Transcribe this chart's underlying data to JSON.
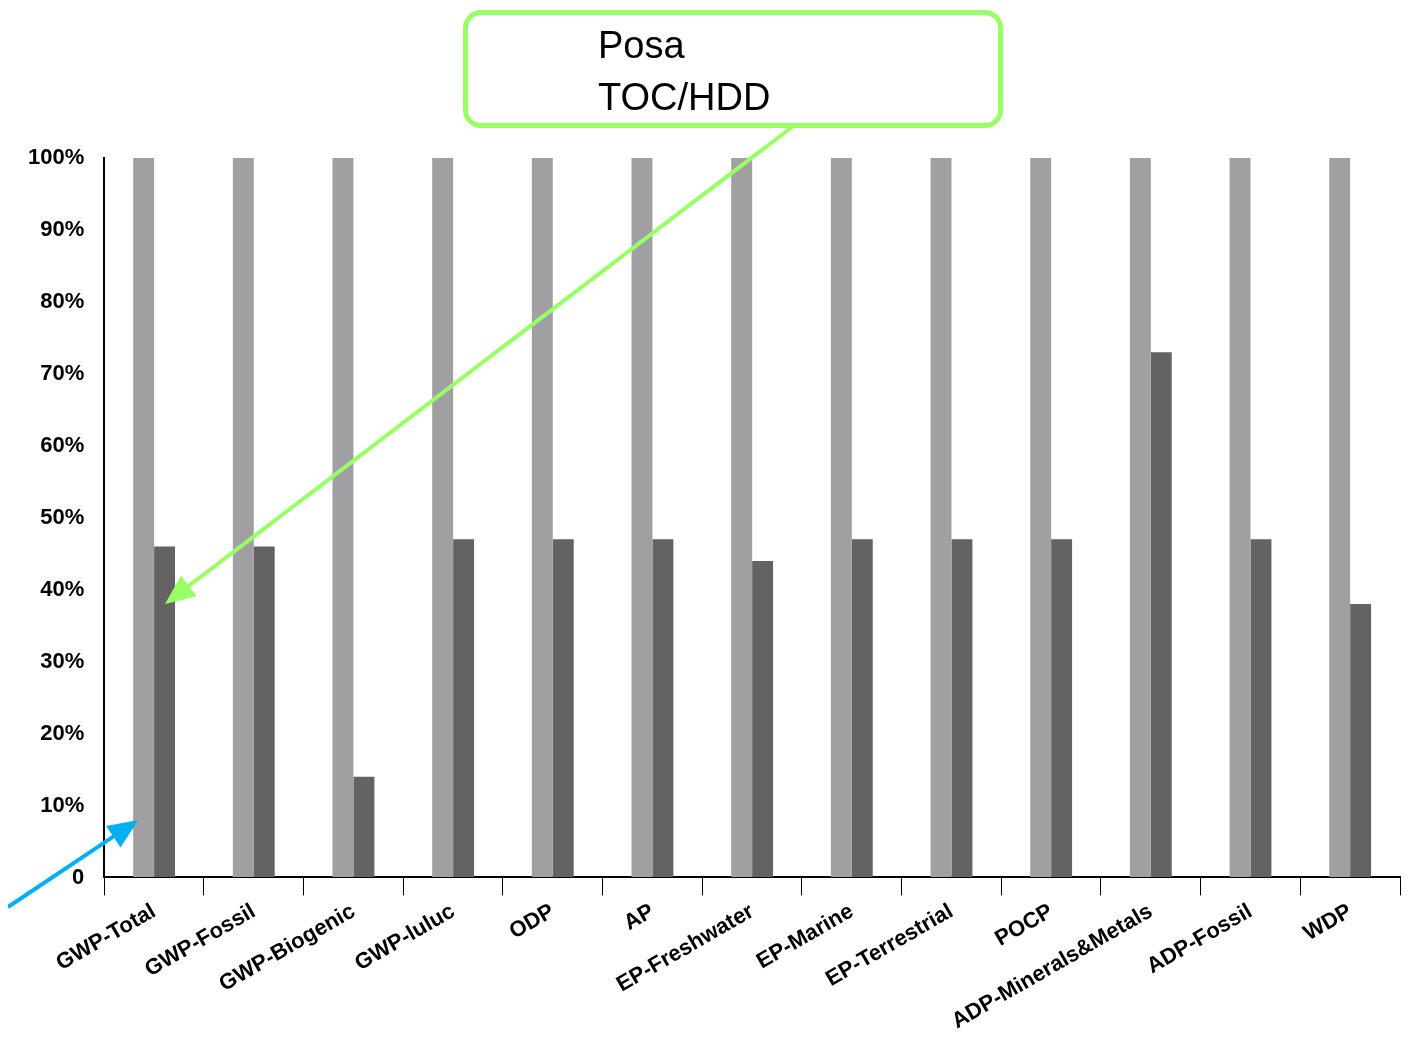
{
  "chart_data": {
    "type": "bar",
    "categories": [
      "GWP-Total",
      "GWP-Fossil",
      "GWP-Biogenic",
      "GWP-luluc",
      "ODP",
      "AP",
      "EP-Freshwater",
      "EP-Marine",
      "EP-Terrestrial",
      "POCP",
      "ADP-Minerals&Metals",
      "ADP-Fossil",
      "WDP"
    ],
    "series": [
      {
        "color": "#a0a0a2",
        "values": [
          100,
          100,
          100,
          100,
          100,
          100,
          100,
          100,
          100,
          100,
          100,
          100,
          100
        ]
      },
      {
        "color": "#636365",
        "values": [
          46,
          46,
          14,
          47,
          47,
          47,
          44,
          47,
          47,
          47,
          73,
          47,
          38
        ]
      }
    ],
    "ylim": [
      0,
      100
    ],
    "yticks": [
      {
        "value": 0,
        "label": "0"
      },
      {
        "value": 10,
        "label": "10%"
      },
      {
        "value": 20,
        "label": "20%"
      },
      {
        "value": 30,
        "label": "30%"
      },
      {
        "value": 40,
        "label": "40%"
      },
      {
        "value": 50,
        "label": "50%"
      },
      {
        "value": 60,
        "label": "60%"
      },
      {
        "value": 70,
        "label": "70%"
      },
      {
        "value": 80,
        "label": "80%"
      },
      {
        "value": 90,
        "label": "90%"
      },
      {
        "value": 100,
        "label": "100%"
      }
    ],
    "grid": false,
    "legend": false,
    "annotations": [
      "Posa\nTOC/HDD"
    ]
  }
}
